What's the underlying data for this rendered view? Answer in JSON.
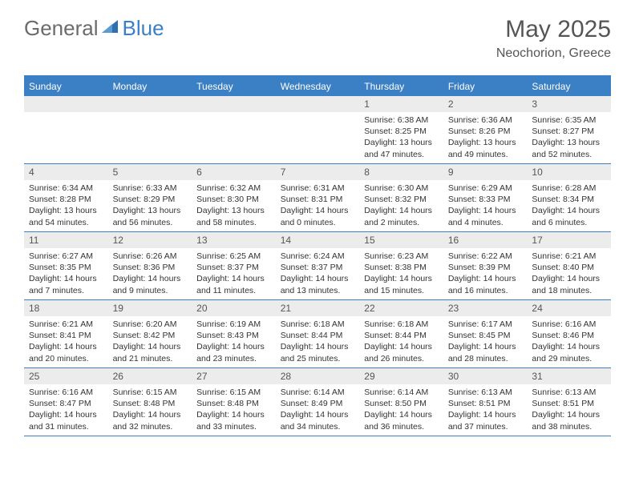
{
  "logo": {
    "word1": "General",
    "word2": "Blue",
    "icon_color": "#2f6fb0"
  },
  "title": {
    "month_year": "May 2025",
    "location": "Neochorion, Greece"
  },
  "colors": {
    "accent": "#3b7fc4",
    "header_text": "#ffffff",
    "num_bg": "#ececec"
  },
  "weekdays": [
    "Sunday",
    "Monday",
    "Tuesday",
    "Wednesday",
    "Thursday",
    "Friday",
    "Saturday"
  ],
  "weeks": [
    [
      {
        "n": "",
        "sr": "",
        "ss": "",
        "dl": ""
      },
      {
        "n": "",
        "sr": "",
        "ss": "",
        "dl": ""
      },
      {
        "n": "",
        "sr": "",
        "ss": "",
        "dl": ""
      },
      {
        "n": "",
        "sr": "",
        "ss": "",
        "dl": ""
      },
      {
        "n": "1",
        "sr": "Sunrise: 6:38 AM",
        "ss": "Sunset: 8:25 PM",
        "dl": "Daylight: 13 hours and 47 minutes."
      },
      {
        "n": "2",
        "sr": "Sunrise: 6:36 AM",
        "ss": "Sunset: 8:26 PM",
        "dl": "Daylight: 13 hours and 49 minutes."
      },
      {
        "n": "3",
        "sr": "Sunrise: 6:35 AM",
        "ss": "Sunset: 8:27 PM",
        "dl": "Daylight: 13 hours and 52 minutes."
      }
    ],
    [
      {
        "n": "4",
        "sr": "Sunrise: 6:34 AM",
        "ss": "Sunset: 8:28 PM",
        "dl": "Daylight: 13 hours and 54 minutes."
      },
      {
        "n": "5",
        "sr": "Sunrise: 6:33 AM",
        "ss": "Sunset: 8:29 PM",
        "dl": "Daylight: 13 hours and 56 minutes."
      },
      {
        "n": "6",
        "sr": "Sunrise: 6:32 AM",
        "ss": "Sunset: 8:30 PM",
        "dl": "Daylight: 13 hours and 58 minutes."
      },
      {
        "n": "7",
        "sr": "Sunrise: 6:31 AM",
        "ss": "Sunset: 8:31 PM",
        "dl": "Daylight: 14 hours and 0 minutes."
      },
      {
        "n": "8",
        "sr": "Sunrise: 6:30 AM",
        "ss": "Sunset: 8:32 PM",
        "dl": "Daylight: 14 hours and 2 minutes."
      },
      {
        "n": "9",
        "sr": "Sunrise: 6:29 AM",
        "ss": "Sunset: 8:33 PM",
        "dl": "Daylight: 14 hours and 4 minutes."
      },
      {
        "n": "10",
        "sr": "Sunrise: 6:28 AM",
        "ss": "Sunset: 8:34 PM",
        "dl": "Daylight: 14 hours and 6 minutes."
      }
    ],
    [
      {
        "n": "11",
        "sr": "Sunrise: 6:27 AM",
        "ss": "Sunset: 8:35 PM",
        "dl": "Daylight: 14 hours and 7 minutes."
      },
      {
        "n": "12",
        "sr": "Sunrise: 6:26 AM",
        "ss": "Sunset: 8:36 PM",
        "dl": "Daylight: 14 hours and 9 minutes."
      },
      {
        "n": "13",
        "sr": "Sunrise: 6:25 AM",
        "ss": "Sunset: 8:37 PM",
        "dl": "Daylight: 14 hours and 11 minutes."
      },
      {
        "n": "14",
        "sr": "Sunrise: 6:24 AM",
        "ss": "Sunset: 8:37 PM",
        "dl": "Daylight: 14 hours and 13 minutes."
      },
      {
        "n": "15",
        "sr": "Sunrise: 6:23 AM",
        "ss": "Sunset: 8:38 PM",
        "dl": "Daylight: 14 hours and 15 minutes."
      },
      {
        "n": "16",
        "sr": "Sunrise: 6:22 AM",
        "ss": "Sunset: 8:39 PM",
        "dl": "Daylight: 14 hours and 16 minutes."
      },
      {
        "n": "17",
        "sr": "Sunrise: 6:21 AM",
        "ss": "Sunset: 8:40 PM",
        "dl": "Daylight: 14 hours and 18 minutes."
      }
    ],
    [
      {
        "n": "18",
        "sr": "Sunrise: 6:21 AM",
        "ss": "Sunset: 8:41 PM",
        "dl": "Daylight: 14 hours and 20 minutes."
      },
      {
        "n": "19",
        "sr": "Sunrise: 6:20 AM",
        "ss": "Sunset: 8:42 PM",
        "dl": "Daylight: 14 hours and 21 minutes."
      },
      {
        "n": "20",
        "sr": "Sunrise: 6:19 AM",
        "ss": "Sunset: 8:43 PM",
        "dl": "Daylight: 14 hours and 23 minutes."
      },
      {
        "n": "21",
        "sr": "Sunrise: 6:18 AM",
        "ss": "Sunset: 8:44 PM",
        "dl": "Daylight: 14 hours and 25 minutes."
      },
      {
        "n": "22",
        "sr": "Sunrise: 6:18 AM",
        "ss": "Sunset: 8:44 PM",
        "dl": "Daylight: 14 hours and 26 minutes."
      },
      {
        "n": "23",
        "sr": "Sunrise: 6:17 AM",
        "ss": "Sunset: 8:45 PM",
        "dl": "Daylight: 14 hours and 28 minutes."
      },
      {
        "n": "24",
        "sr": "Sunrise: 6:16 AM",
        "ss": "Sunset: 8:46 PM",
        "dl": "Daylight: 14 hours and 29 minutes."
      }
    ],
    [
      {
        "n": "25",
        "sr": "Sunrise: 6:16 AM",
        "ss": "Sunset: 8:47 PM",
        "dl": "Daylight: 14 hours and 31 minutes."
      },
      {
        "n": "26",
        "sr": "Sunrise: 6:15 AM",
        "ss": "Sunset: 8:48 PM",
        "dl": "Daylight: 14 hours and 32 minutes."
      },
      {
        "n": "27",
        "sr": "Sunrise: 6:15 AM",
        "ss": "Sunset: 8:48 PM",
        "dl": "Daylight: 14 hours and 33 minutes."
      },
      {
        "n": "28",
        "sr": "Sunrise: 6:14 AM",
        "ss": "Sunset: 8:49 PM",
        "dl": "Daylight: 14 hours and 34 minutes."
      },
      {
        "n": "29",
        "sr": "Sunrise: 6:14 AM",
        "ss": "Sunset: 8:50 PM",
        "dl": "Daylight: 14 hours and 36 minutes."
      },
      {
        "n": "30",
        "sr": "Sunrise: 6:13 AM",
        "ss": "Sunset: 8:51 PM",
        "dl": "Daylight: 14 hours and 37 minutes."
      },
      {
        "n": "31",
        "sr": "Sunrise: 6:13 AM",
        "ss": "Sunset: 8:51 PM",
        "dl": "Daylight: 14 hours and 38 minutes."
      }
    ]
  ]
}
